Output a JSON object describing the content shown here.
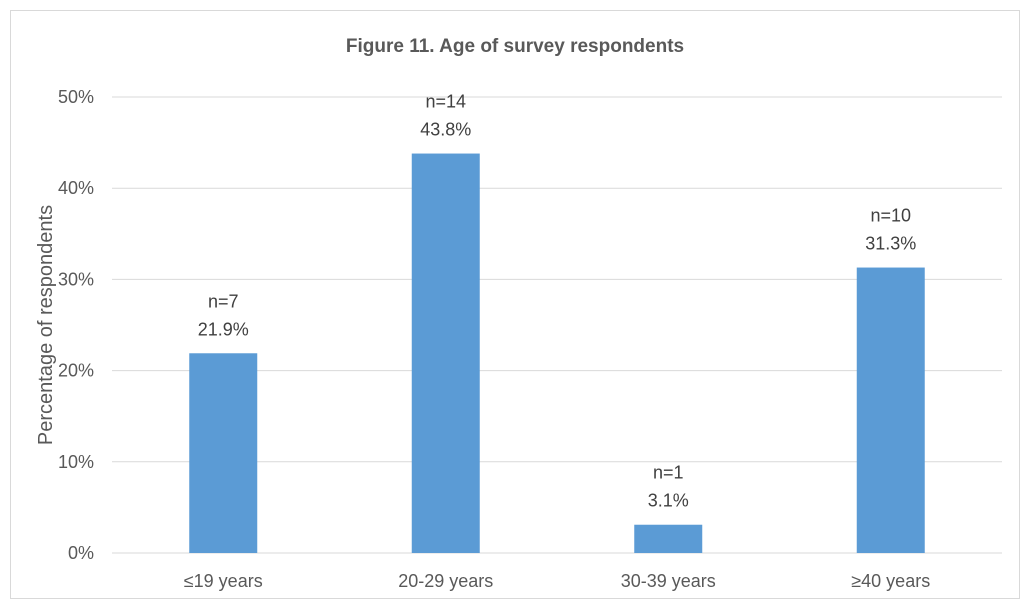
{
  "chart_data": {
    "type": "bar",
    "title": "Figure 11. Age of survey respondents",
    "xlabel": "",
    "ylabel": "Percentage of respondents",
    "categories": [
      "≤19 years",
      "20-29 years",
      "30-39 years",
      "≥40 years"
    ],
    "values": [
      21.9,
      43.8,
      3.1,
      31.3
    ],
    "counts": [
      "n=7",
      "n=14",
      "n=1",
      "n=10"
    ],
    "value_labels": [
      "21.9%",
      "43.8%",
      "3.1%",
      "31.3%"
    ],
    "ylim": [
      0,
      50
    ],
    "yticks": [
      "0%",
      "10%",
      "20%",
      "30%",
      "40%",
      "50%"
    ],
    "grid": true,
    "legend": "none",
    "bar_color": "#5b9bd5",
    "grid_color": "#d9d9d9"
  }
}
